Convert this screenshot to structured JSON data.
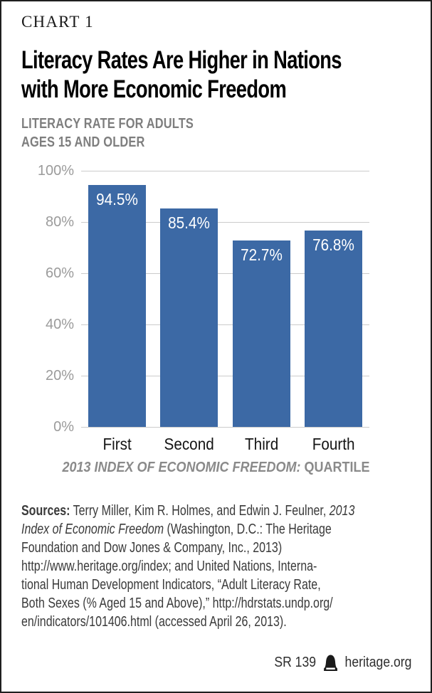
{
  "header": {
    "kicker": "CHART 1",
    "title_line1": "Literacy Rates Are Higher in Nations",
    "title_line2": "with More Economic Freedom",
    "subtitle_line1": "LITERACY RATE FOR ADULTS",
    "subtitle_line2": "AGES 15 AND OLDER"
  },
  "chart_data": {
    "type": "bar",
    "title": "Literacy Rates Are Higher in Nations with More Economic Freedom",
    "subtitle": "LITERACY RATE FOR ADULTS AGES 15 AND OLDER",
    "categories": [
      "First",
      "Second",
      "Third",
      "Fourth"
    ],
    "values": [
      94.5,
      85.4,
      72.7,
      76.8
    ],
    "value_labels": [
      "94.5%",
      "85.4%",
      "72.7%",
      "76.8%"
    ],
    "xlabel": "2013 INDEX OF ECONOMIC FREEDOM: QUARTILE",
    "xlabel_italic": "2013 INDEX OF ECONOMIC FREEDOM:",
    "xlabel_upright": "QUARTILE",
    "ylabel": "",
    "ylim": [
      0,
      100
    ],
    "ytick_interval": 20,
    "yticks": [
      {
        "value": 100,
        "label": "100%"
      },
      {
        "value": 80,
        "label": "80%"
      },
      {
        "value": 60,
        "label": "60%"
      },
      {
        "value": 40,
        "label": "40%"
      },
      {
        "value": 20,
        "label": "20%"
      },
      {
        "value": 0,
        "label": "0%"
      }
    ],
    "grid": true,
    "legend_position": "none",
    "bar_color": "#3C69A5",
    "gridline_color": "#CBCBCB",
    "tick_label_color": "#9B9B9B",
    "value_label_color": "#FFFFFF"
  },
  "sources": {
    "lines": [
      [
        {
          "t": "Sources:",
          "b": true
        },
        {
          "t": " Terry Miller, Kim R. Holmes, and Edwin J. Feulner, "
        },
        {
          "t": "2013",
          "i": true
        }
      ],
      [
        {
          "t": "Index of Economic Freedom",
          "i": true
        },
        {
          "t": " (Washington, D.C.: The Heritage"
        }
      ],
      [
        {
          "t": "Foundation and Dow Jones & Company, Inc., 2013)"
        }
      ],
      [
        {
          "t": "http://www.heritage.org/index; and United Nations, Interna-"
        }
      ],
      [
        {
          "t": "tional Human Development Indicators, “Adult Literacy Rate,"
        }
      ],
      [
        {
          "t": "Both Sexes (% Aged 15 and Above),” http://hdrstats.undp.org/"
        }
      ],
      [
        {
          "t": "en/indicators/101406.html (accessed April 26, 2013)."
        }
      ]
    ]
  },
  "footer": {
    "report_id": "SR 139",
    "site": "heritage.org"
  },
  "icons": {
    "footer_logo": "liberty-bell-icon"
  },
  "colors": {
    "bar": "#3C69A5",
    "grid": "#CBCBCB",
    "y_tick_labels": "#9B9B9B",
    "subtitle": "#7E7E7E",
    "axis_title": "#8A8A8A",
    "sources_text": "#3A3A3A",
    "title": "#000000",
    "page_border": "#1F1F1F",
    "background": "#FFFFFF"
  }
}
